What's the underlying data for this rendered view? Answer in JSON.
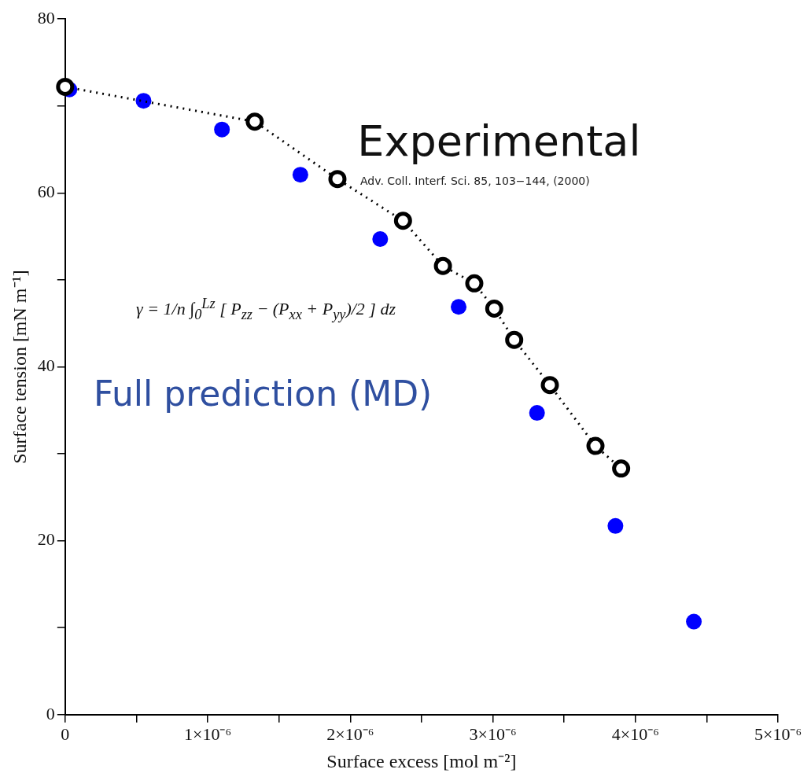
{
  "chart_data": {
    "type": "scatter",
    "xlabel": "Surface excess [mol m⁻²]",
    "ylabel": "Surface tension [mN m⁻¹]",
    "xlim": [
      0,
      5e-06
    ],
    "ylim": [
      0,
      80
    ],
    "xticks": [
      0,
      {
        "value": 5e-07,
        "label": null
      },
      {
        "value": 1e-06,
        "label": "1×10⁻⁶"
      },
      {
        "value": 1.5e-06,
        "label": null
      },
      {
        "value": 2e-06,
        "label": "2×10⁻⁶"
      },
      {
        "value": 2.5e-06,
        "label": null
      },
      {
        "value": 3e-06,
        "label": "3×10⁻⁶"
      },
      {
        "value": 3.5e-06,
        "label": null
      },
      {
        "value": 4e-06,
        "label": "4×10⁻⁶"
      },
      {
        "value": 4.5e-06,
        "label": null
      },
      {
        "value": 5e-06,
        "label": "5×10⁻⁶"
      }
    ],
    "yticks": [
      0,
      {
        "value": 10,
        "label": null
      },
      20,
      {
        "value": 30,
        "label": null
      },
      40,
      {
        "value": 50,
        "label": null
      },
      60,
      {
        "value": 70,
        "label": null
      },
      80
    ],
    "grid": false,
    "legend": false,
    "marker": "circle",
    "series": [
      {
        "name": "Full prediction (MD)",
        "color": "#0000ff",
        "x": [
          3e-08,
          5.5e-07,
          1.1e-06,
          1.65e-06,
          2.21e-06,
          2.76e-06,
          3.31e-06,
          3.86e-06,
          4.41e-06
        ],
        "values": [
          71.9,
          70.6,
          67.3,
          62.1,
          54.7,
          46.9,
          34.7,
          21.7,
          10.7
        ]
      },
      {
        "name": "Experimental",
        "color": "#000000",
        "type": "line",
        "line_style": "dotted",
        "x": [
          0,
          1.33e-06,
          1.91e-06,
          2.37e-06,
          2.65e-06,
          2.87e-06,
          3.01e-06,
          3.15e-06,
          3.4e-06,
          3.72e-06,
          3.9e-06
        ],
        "values": [
          72.2,
          68.2,
          61.6,
          56.8,
          51.6,
          49.6,
          46.7,
          43.1,
          37.9,
          30.9,
          28.3
        ]
      }
    ],
    "annotations": [
      "Adv. Coll. Interf. Sci. 85, 103−144, (2000)",
      "γ = 1/n ∫$_{0}$$^{Lz}$ [ P$_{zz}$ − (P$_{xx}$ + P$_{yy}$)/2 ] dz"
    ]
  }
}
